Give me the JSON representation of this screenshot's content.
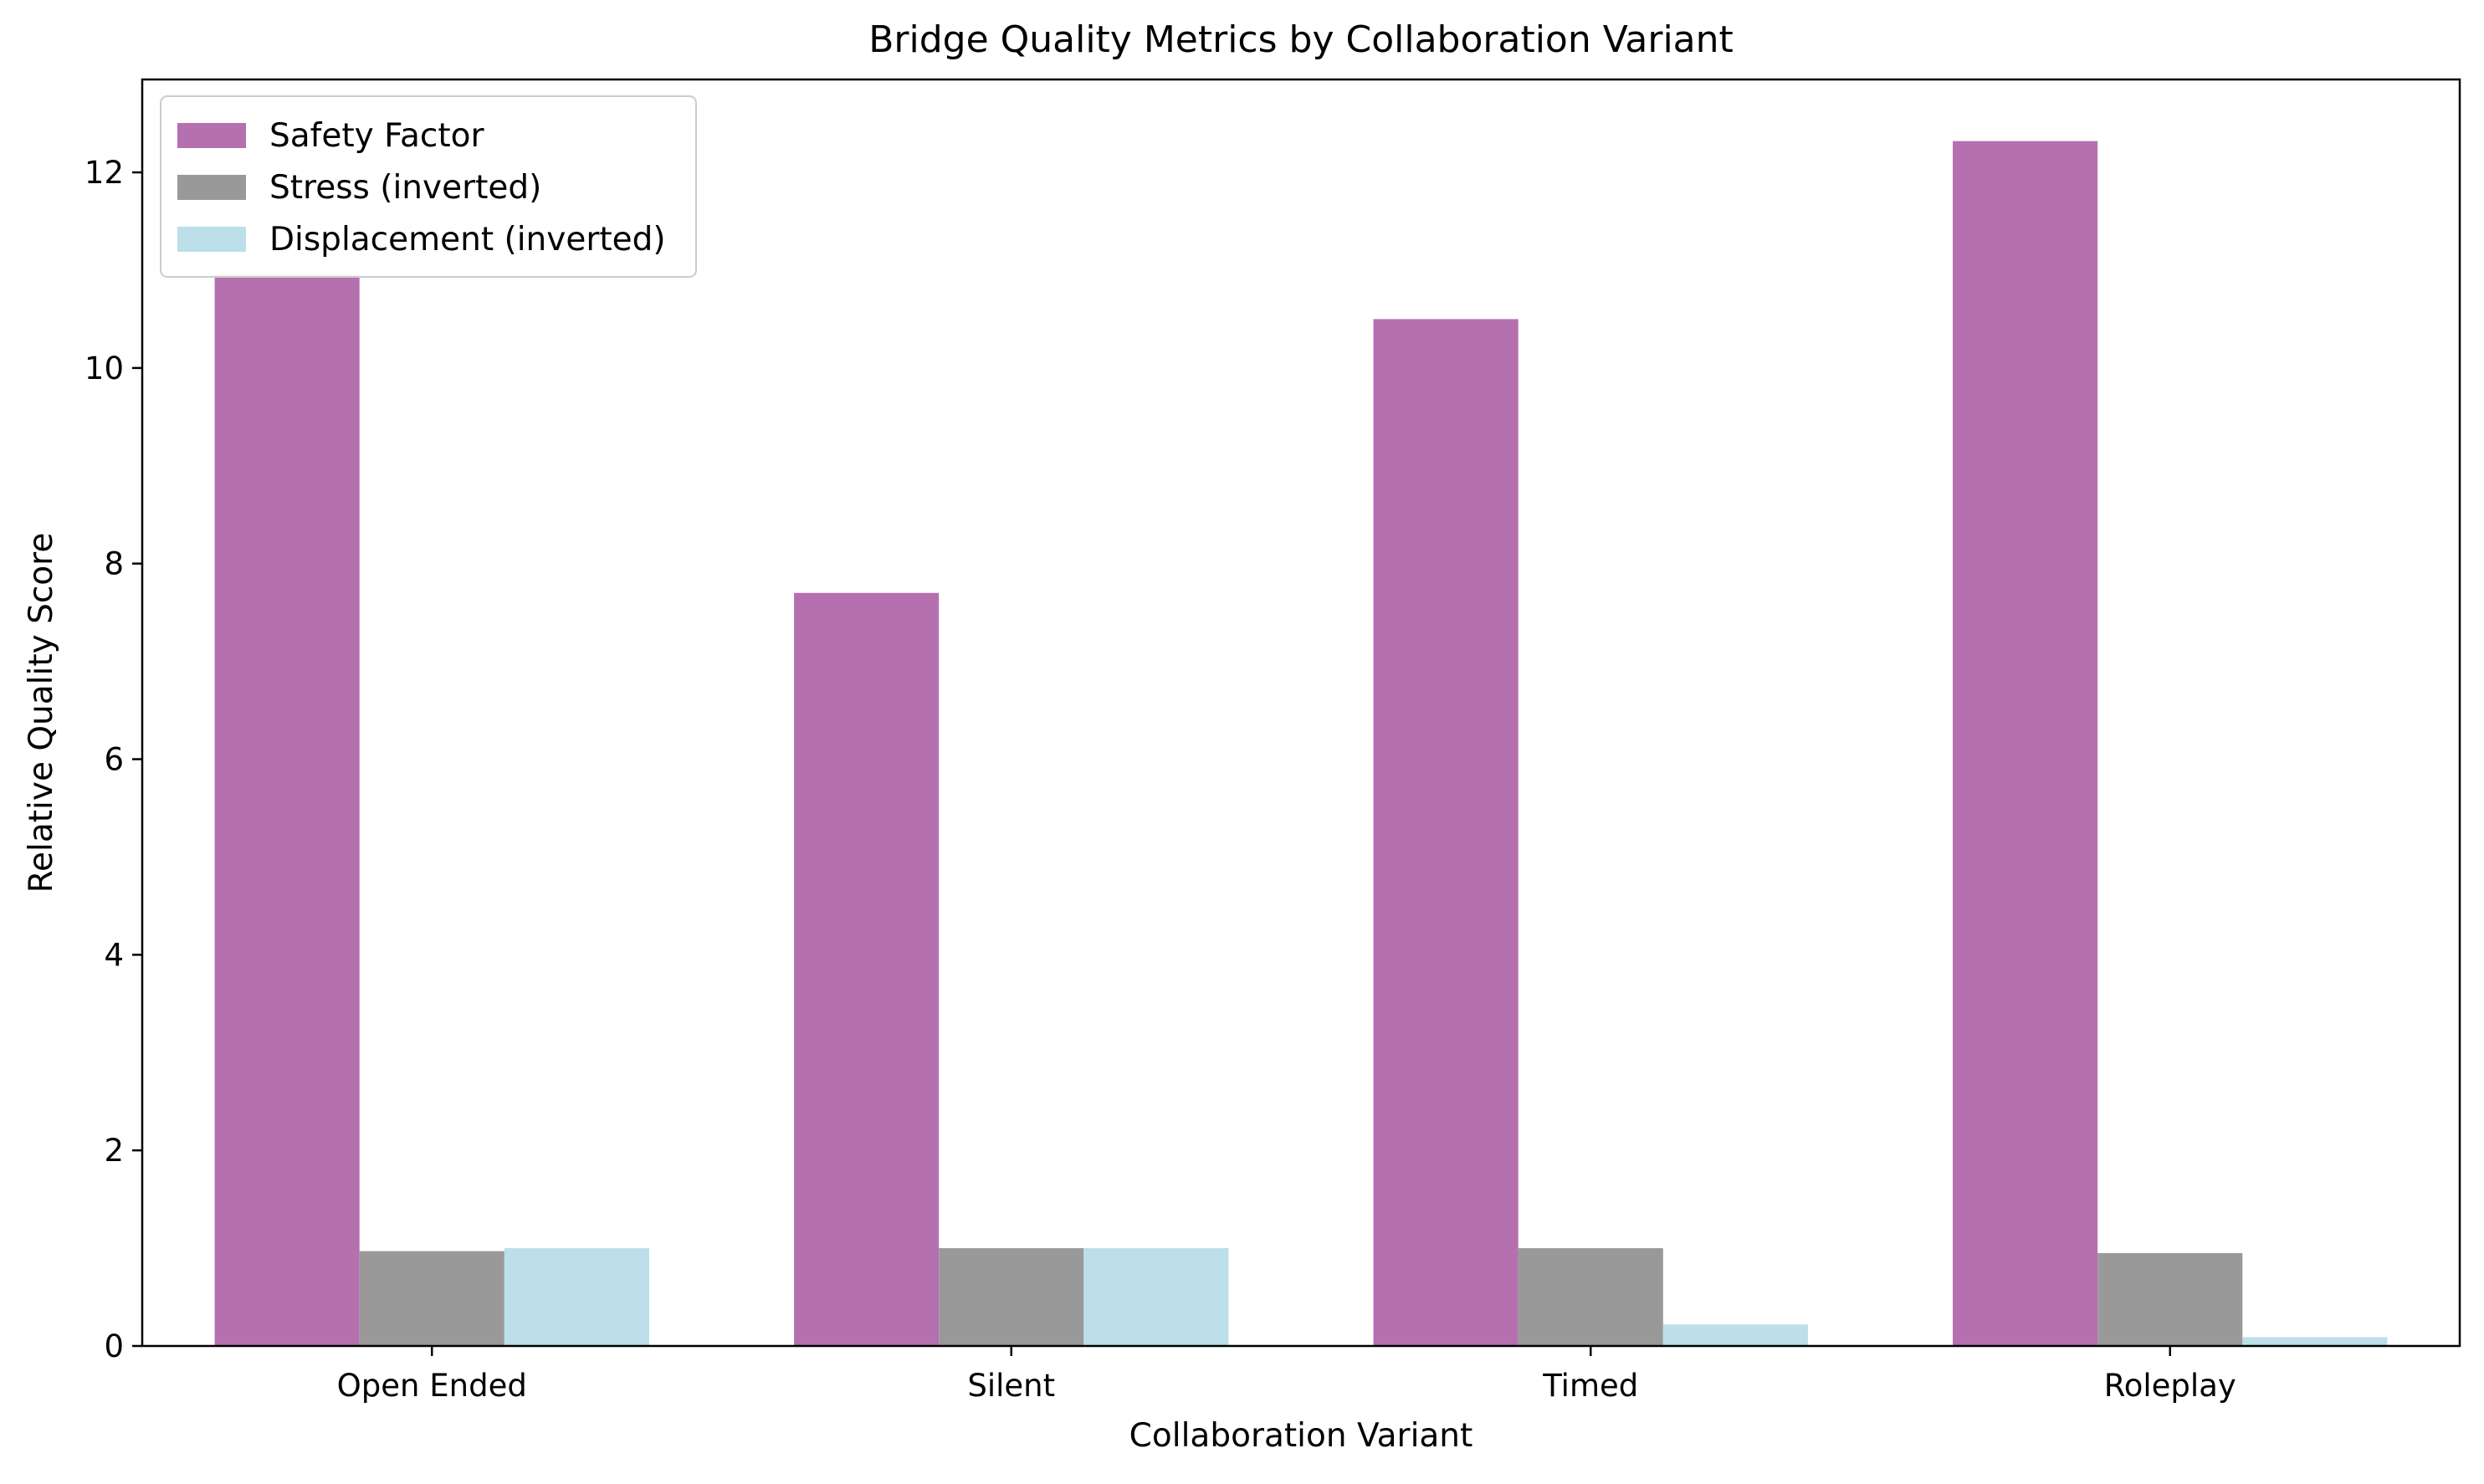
{
  "chart_data": {
    "type": "bar",
    "title": "Bridge Quality Metrics by Collaboration Variant",
    "xlabel": "Collaboration Variant",
    "ylabel": "Relative Quality Score",
    "categories": [
      "Open Ended",
      "Silent",
      "Timed",
      "Roleplay"
    ],
    "series": [
      {
        "name": "Safety Factor",
        "color": "#b570b0",
        "values": [
          10.95,
          7.7,
          10.5,
          12.32
        ]
      },
      {
        "name": "Stress (inverted)",
        "color": "#999999",
        "values": [
          0.97,
          1.0,
          1.0,
          0.95
        ]
      },
      {
        "name": "Displacement (inverted)",
        "color": "#bcdfea",
        "values": [
          1.0,
          1.0,
          0.22,
          0.09
        ]
      }
    ],
    "ylim": [
      0,
      12.95
    ],
    "yticks": [
      "0",
      "2",
      "4",
      "6",
      "8",
      "10",
      "12"
    ],
    "grid": false,
    "legend_position": "top-left"
  }
}
